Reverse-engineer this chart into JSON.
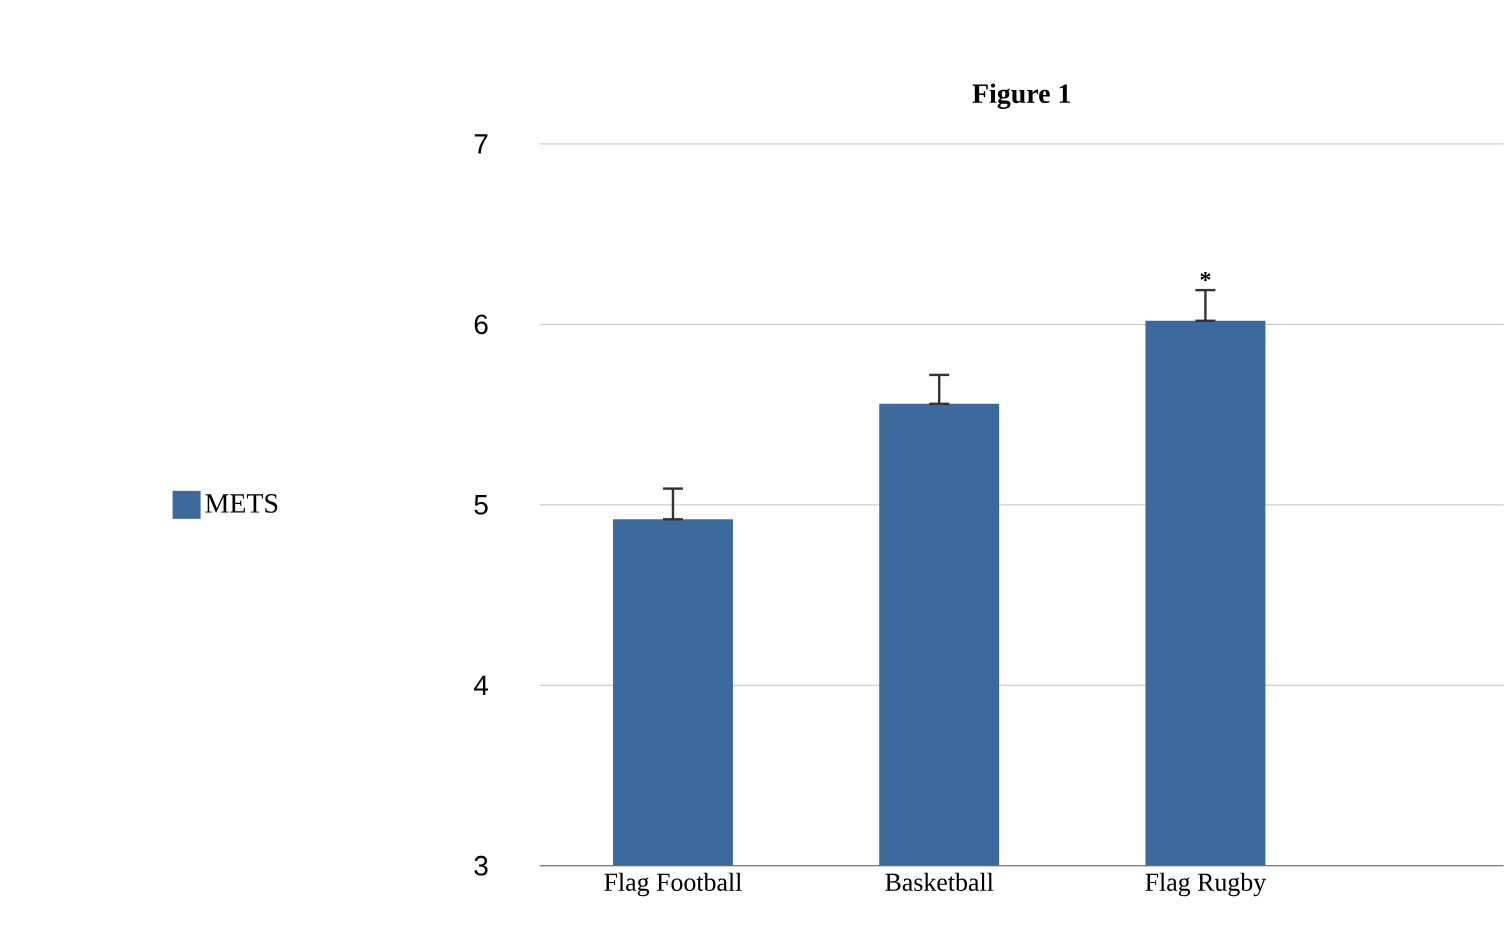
{
  "chart_data": {
    "type": "bar",
    "title": "Figure 1",
    "categories": [
      "Flag Football",
      "Basketball",
      "Flag Rugby"
    ],
    "series": [
      {
        "name": "METS",
        "color": "#3d6a9c",
        "values": [
          4.92,
          5.56,
          6.02
        ],
        "errors": [
          [
            4.92,
            5.09
          ],
          [
            5.56,
            5.72
          ],
          [
            6.02,
            6.19
          ]
        ]
      }
    ],
    "ylim": [
      3,
      7
    ],
    "yticks": [
      3,
      4,
      5,
      6,
      7
    ],
    "grid": "y",
    "legend": "left",
    "annotations": [
      "*"
    ]
  }
}
